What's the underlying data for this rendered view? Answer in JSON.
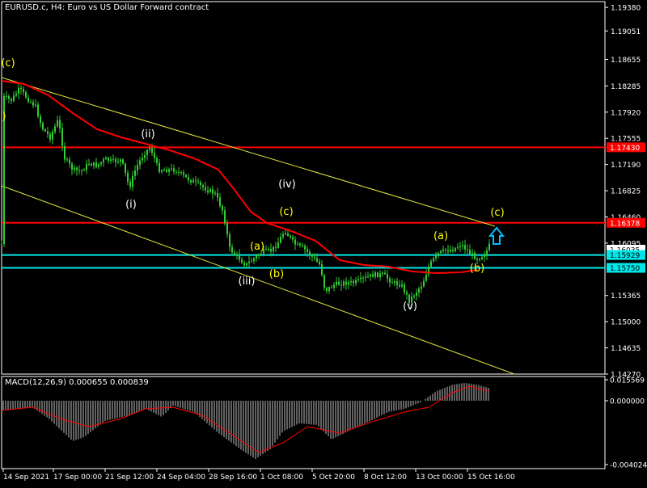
{
  "chart": {
    "title": "EURUSD.c, H4:  Euro vs US Dollar Forward contract"
  },
  "macd": {
    "title": "MACD(12,26,9) 0.000655 0.000839",
    "ticks": [
      "0.015569",
      "0.000000",
      "-0.004024"
    ]
  },
  "price_axis": {
    "ticks": [
      "1.19380",
      "1.19051",
      "1.18655",
      "1.18285",
      "1.17920",
      "1.17555",
      "1.17190",
      "1.16825",
      "1.16460",
      "1.16095",
      "1.15365",
      "1.15000",
      "1.14635",
      "1.14270"
    ]
  },
  "price_tags": [
    {
      "label": "1.17430",
      "kind": "line-red"
    },
    {
      "label": "1.16378",
      "kind": "line-red"
    },
    {
      "label": "1.16035",
      "kind": "current"
    },
    {
      "label": "1.15929",
      "kind": "line-cyan"
    },
    {
      "label": "1.15750",
      "kind": "line-cyan"
    }
  ],
  "time_axis": {
    "ticks": [
      "14 Sep 2021",
      "17 Sep 00:00",
      "21 Sep 12:00",
      "24 Sep 04:00",
      "28 Sep 16:00",
      "1 Oct 08:00",
      "5 Oct 20:00",
      "8 Oct 12:00",
      "13 Oct 00:00",
      "15 Oct 16:00"
    ]
  },
  "wave_labels": [
    {
      "text": "(c)",
      "color": "yellow"
    },
    {
      "text": ")",
      "color": "yellow"
    },
    {
      "text": "(ii)",
      "color": "white"
    },
    {
      "text": "(i)",
      "color": "white"
    },
    {
      "text": "(iv)",
      "color": "white"
    },
    {
      "text": "(iii)",
      "color": "white"
    },
    {
      "text": "(c)",
      "color": "yellow"
    },
    {
      "text": "(a)",
      "color": "yellow"
    },
    {
      "text": "(b)",
      "color": "yellow"
    },
    {
      "text": "(v)",
      "color": "white"
    },
    {
      "text": "(a)",
      "color": "yellow"
    },
    {
      "text": "(b)",
      "color": "yellow"
    },
    {
      "text": "(c)",
      "color": "yellow"
    }
  ],
  "colors": {
    "background": "#000000",
    "candles": "#32cd32",
    "moving_average": "#ff0000",
    "horizontal_red": "#ff0000",
    "horizontal_cyan": "#00e5e5",
    "channel": "#e6e63c",
    "macd_histogram": "#c0c0c0",
    "macd_signal": "#ff0000",
    "wave_yellow": "#ffff00",
    "wave_white": "#ffffff",
    "arrow": "#00bfff",
    "grid_and_axes": "#ffffff",
    "current_price_tag": "#ffffff"
  },
  "icons": {
    "arrow": "up-arrow-icon"
  },
  "chart_data": {
    "type": "candlestick",
    "symbol": "EURUSD.c",
    "timeframe": "H4",
    "ylim": [
      1.1427,
      1.1946
    ],
    "horizontal_levels": [
      {
        "value": 1.1743,
        "color": "red"
      },
      {
        "value": 1.16378,
        "color": "red"
      },
      {
        "value": 1.15929,
        "color": "cyan"
      },
      {
        "value": 1.1575,
        "color": "cyan"
      }
    ],
    "current_price": 1.16035,
    "price_path": [
      [
        "14 Sep 2021",
        1.1835
      ],
      [
        "15 Sep 00:00",
        1.1815
      ],
      [
        "16 Sep 00:00",
        1.1785
      ],
      [
        "17 Sep 00:00",
        1.1735
      ],
      [
        "20 Sep 00:00",
        1.172
      ],
      [
        "21 Sep 12:00",
        1.1715
      ],
      [
        "22 Sep 00:00",
        1.17
      ],
      [
        "23 Sep 00:00",
        1.175
      ],
      [
        "24 Sep 04:00",
        1.172
      ],
      [
        "27 Sep 00:00",
        1.17
      ],
      [
        "28 Sep 00:00",
        1.168
      ],
      [
        "28 Sep 16:00",
        1.16
      ],
      [
        "29 Sep 12:00",
        1.158
      ],
      [
        "30 Sep 12:00",
        1.16
      ],
      [
        "1 Oct 08:00",
        1.1625
      ],
      [
        "4 Oct 00:00",
        1.1605
      ],
      [
        "5 Oct 20:00",
        1.155
      ],
      [
        "6 Oct 12:00",
        1.1555
      ],
      [
        "7 Oct 12:00",
        1.156
      ],
      [
        "8 Oct 12:00",
        1.157
      ],
      [
        "11 Oct 00:00",
        1.156
      ],
      [
        "12 Oct 00:00",
        1.153
      ],
      [
        "13 Oct 00:00",
        1.157
      ],
      [
        "14 Oct 00:00",
        1.16
      ],
      [
        "15 Oct 00:00",
        1.1605
      ],
      [
        "15 Oct 16:00",
        1.1592
      ],
      [
        "16 Oct 00:00",
        1.16035
      ]
    ]
  }
}
